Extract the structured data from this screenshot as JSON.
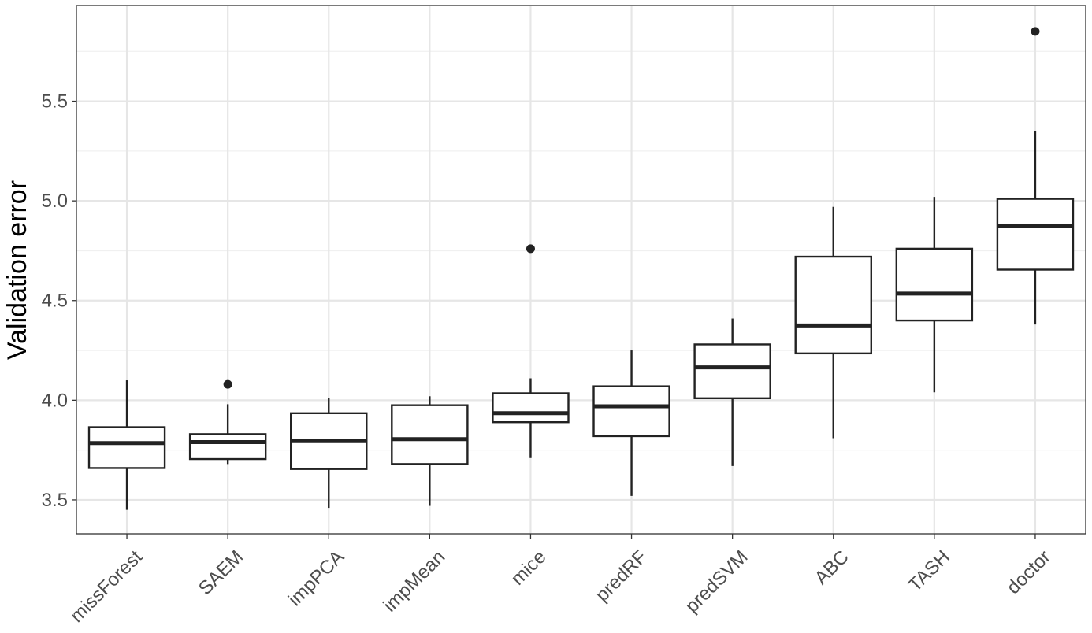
{
  "chart_data": {
    "type": "boxplot",
    "title": "",
    "xlabel": "",
    "ylabel": "Validation error",
    "ylim": [
      3.33,
      5.98
    ],
    "yticks": [
      "3.5",
      "4.0",
      "4.5",
      "5.0",
      "5.5"
    ],
    "grid": true,
    "legend": "none",
    "colors": {
      "box_stroke": "#222222",
      "grid_major": "#e6e6e6",
      "grid_minor": "#f0f0f0",
      "panel_border": "#333333"
    },
    "categories": [
      "missForest",
      "SAEM",
      "impPCA",
      "impMean",
      "mice",
      "predRF",
      "predSVM",
      "ABC",
      "TASH",
      "doctor"
    ],
    "boxes": [
      {
        "min": 3.45,
        "q1": 3.66,
        "median": 3.785,
        "q3": 3.865,
        "max": 4.1,
        "outliers": []
      },
      {
        "min": 3.68,
        "q1": 3.705,
        "median": 3.79,
        "q3": 3.83,
        "max": 3.98,
        "outliers": [
          4.08
        ]
      },
      {
        "min": 3.46,
        "q1": 3.655,
        "median": 3.795,
        "q3": 3.935,
        "max": 4.01,
        "outliers": []
      },
      {
        "min": 3.47,
        "q1": 3.68,
        "median": 3.805,
        "q3": 3.975,
        "max": 4.02,
        "outliers": []
      },
      {
        "min": 3.71,
        "q1": 3.89,
        "median": 3.935,
        "q3": 4.035,
        "max": 4.11,
        "outliers": [
          4.76
        ]
      },
      {
        "min": 3.52,
        "q1": 3.82,
        "median": 3.97,
        "q3": 4.07,
        "max": 4.25,
        "outliers": []
      },
      {
        "min": 3.67,
        "q1": 4.01,
        "median": 4.165,
        "q3": 4.28,
        "max": 4.41,
        "outliers": []
      },
      {
        "min": 3.81,
        "q1": 4.235,
        "median": 4.375,
        "q3": 4.72,
        "max": 4.97,
        "outliers": []
      },
      {
        "min": 4.04,
        "q1": 4.4,
        "median": 4.535,
        "q3": 4.76,
        "max": 5.02,
        "outliers": []
      },
      {
        "min": 4.38,
        "q1": 4.655,
        "median": 4.875,
        "q3": 5.01,
        "max": 5.35,
        "outliers": [
          5.85
        ]
      }
    ]
  }
}
